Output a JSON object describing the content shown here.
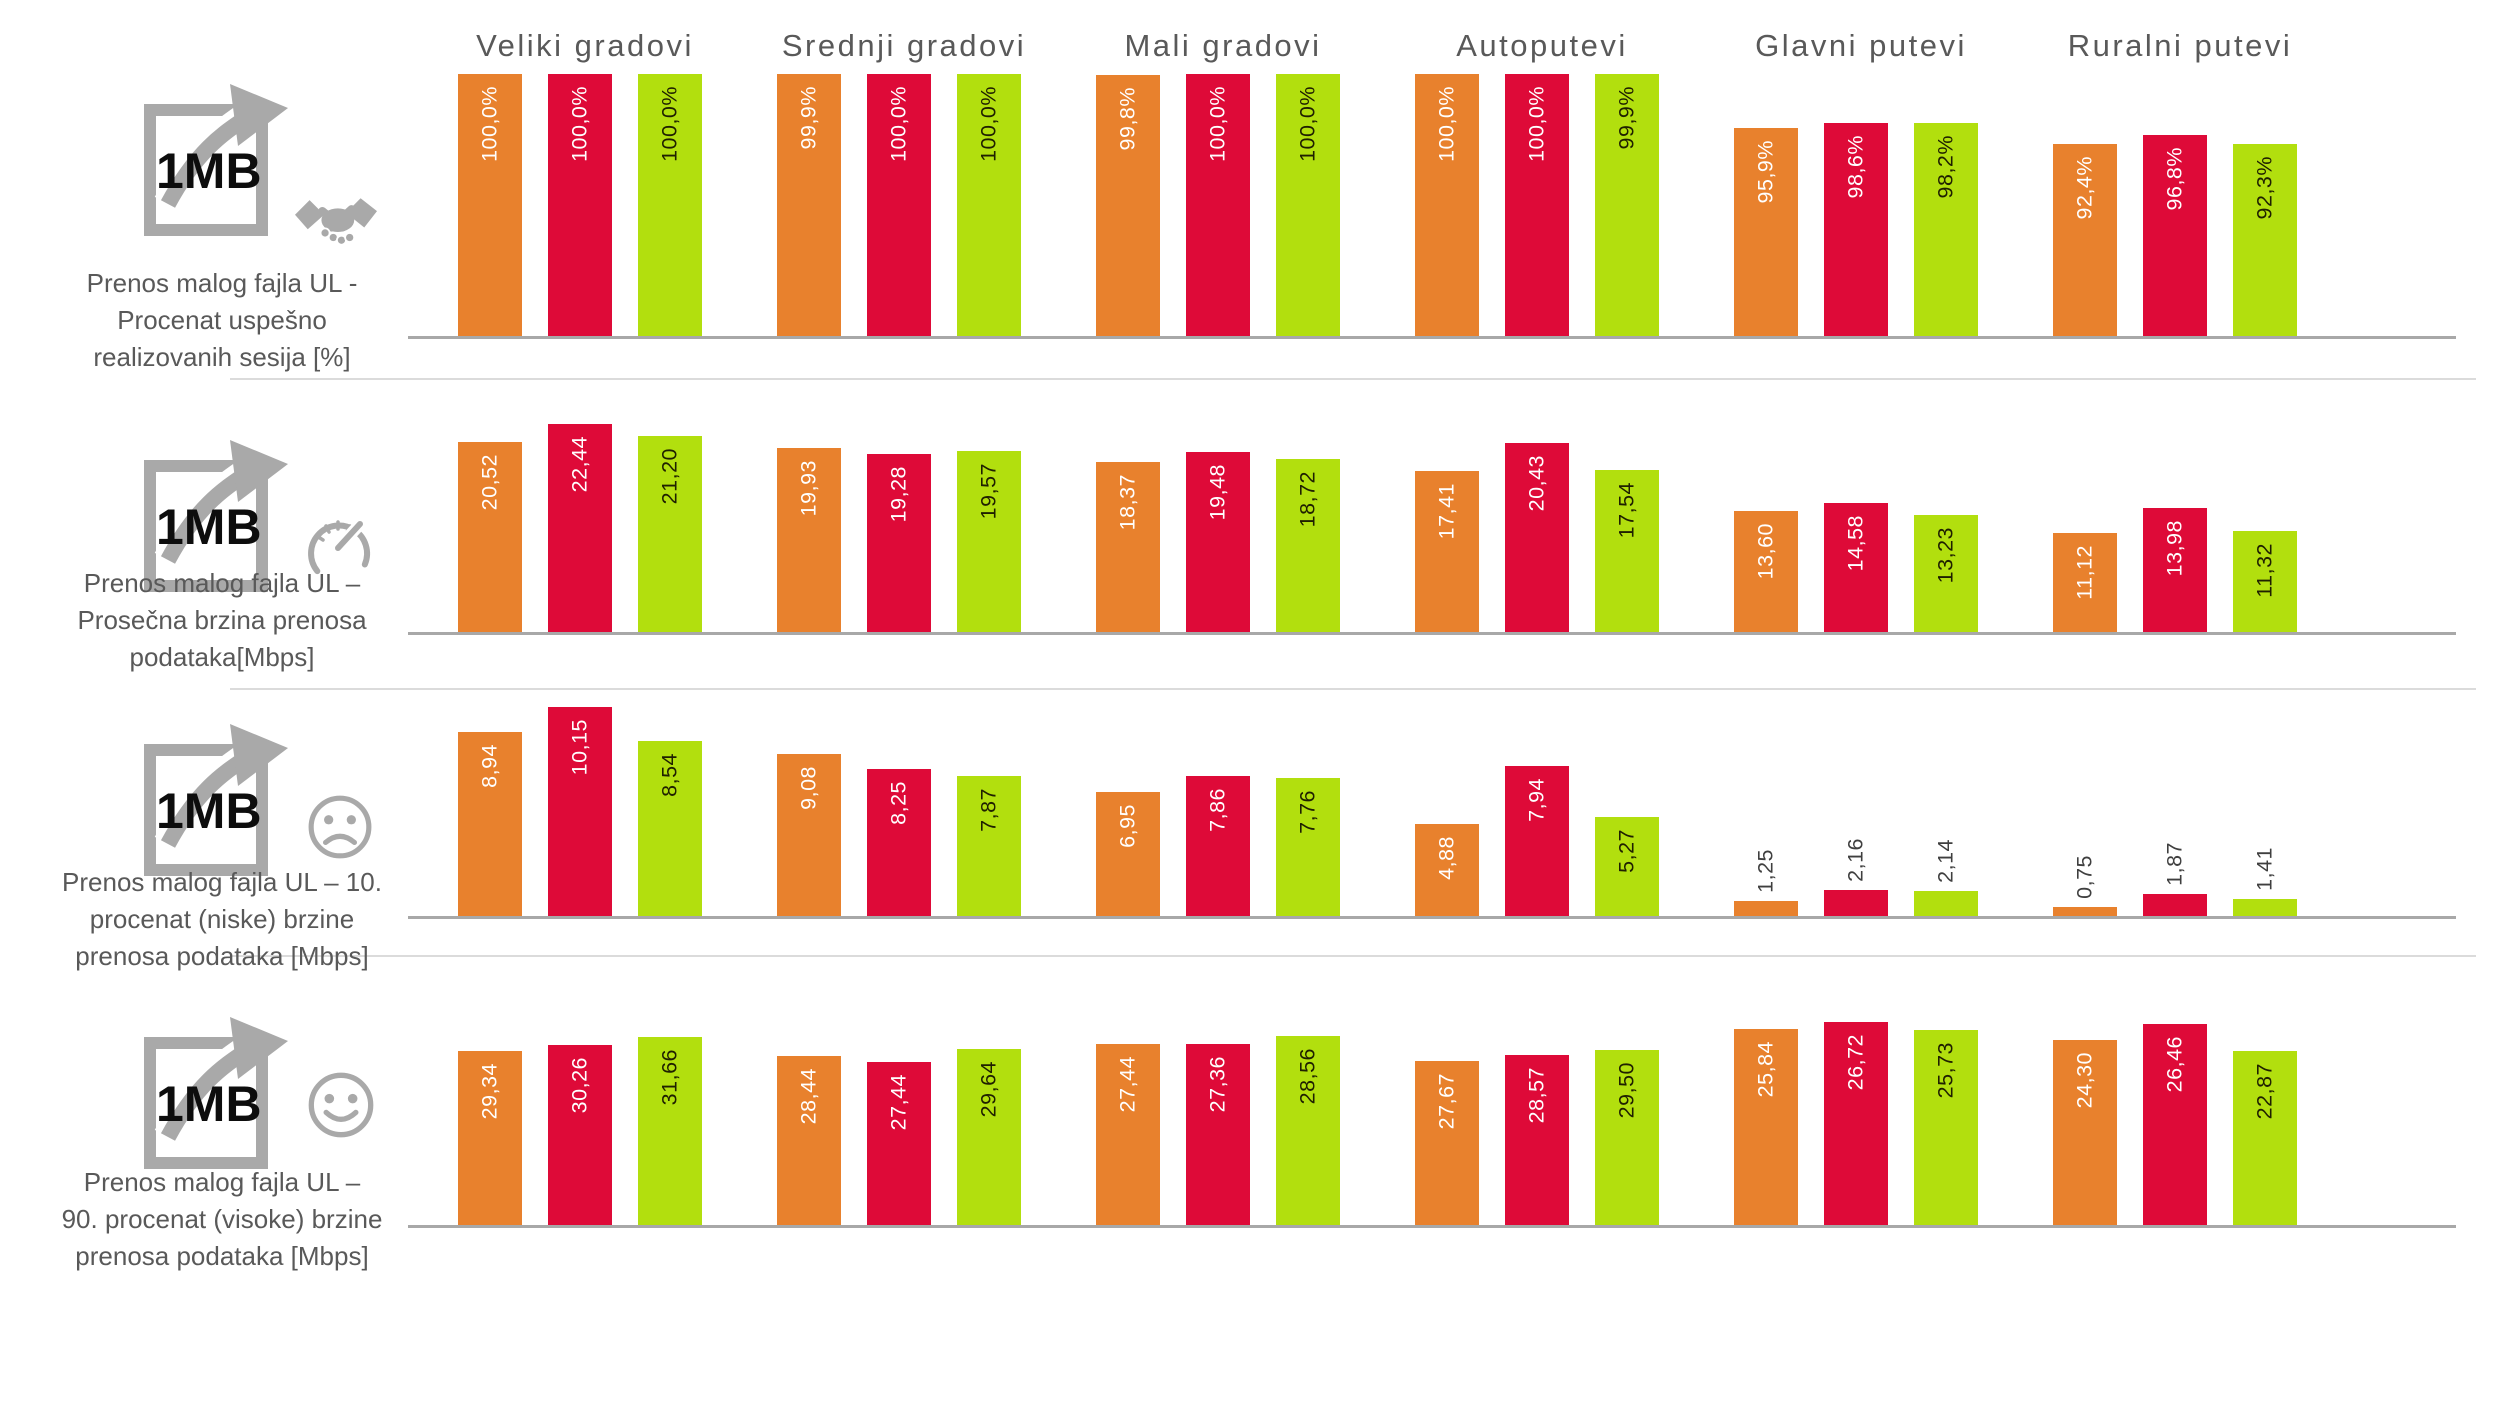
{
  "page": {
    "background": "#FFFFFF"
  },
  "colors": {
    "orange": "#E8812D",
    "red": "#DE0A38",
    "green": "#B2DF0E",
    "icon_gray": "#A9A9A9",
    "text_gray": "#595959",
    "axis_gray": "#A8A8A8",
    "separator_gray": "#DBDBDB",
    "label_outside_dark": "#3F3F3F",
    "label_on_green": "#1F2000",
    "label_on_warm": "#FFFFFF"
  },
  "columns": [
    "Veliki gradovi",
    "Srednji gradovi",
    "Mali gradovi",
    "Autoputevi",
    "Glavni putevi",
    "Ruralni putevi"
  ],
  "rows": [
    {
      "doc_icon_text": "1MB",
      "side_icon": "handshake-icon",
      "label_lines": [
        "Prenos malog fajla UL -",
        "Procenat uspešno",
        "realizovanih sesija [%]"
      ]
    },
    {
      "doc_icon_text": "1MB",
      "side_icon": "speedometer-icon",
      "label_lines": [
        "Prenos malog fajla  UL –",
        "Prosečna brzina prenosa",
        "podataka[Mbps]"
      ]
    },
    {
      "doc_icon_text": "1MB",
      "side_icon": "sad-face-icon",
      "label_lines": [
        "Prenos malog fajla  UL – 10.",
        "procenat (niske) brzine",
        "prenosa podataka  [Mbps]"
      ]
    },
    {
      "doc_icon_text": "1MB",
      "side_icon": "happy-face-icon",
      "label_lines": [
        "Prenos malog fajla UL  –",
        "90. procenat (visoke) brzine",
        "prenosa podataka [Mbps]"
      ]
    }
  ],
  "chart_data": [
    {
      "type": "bar",
      "title": "Prenos malog fajla UL - Procenat uspešno realizovanih sesija [%]",
      "categories": [
        "Veliki gradovi",
        "Srednji gradovi",
        "Mali gradovi",
        "Autoputevi",
        "Glavni putevi",
        "Ruralni putevi"
      ],
      "unit": "%",
      "value_format": {
        "decimals": 1,
        "suffix": "%",
        "decimal_separator": ","
      },
      "axis": {
        "ymin": 0,
        "group_ymax": [
          100,
          100,
          100,
          100,
          121,
          126
        ],
        "grid": false,
        "legend": "none"
      },
      "series": [
        {
          "name": "orange",
          "color": "#E8812D",
          "values": [
            100.0,
            99.9,
            99.8,
            100.0,
            95.9,
            92.4
          ],
          "labels": [
            "100,0%",
            "99,9%",
            "99,8%",
            "100,0%",
            "95,9%",
            "92,4%"
          ]
        },
        {
          "name": "red",
          "color": "#DE0A38",
          "values": [
            100.0,
            100.0,
            100.0,
            100.0,
            98.6,
            96.8
          ],
          "labels": [
            "100,0%",
            "100,0%",
            "100,0%",
            "100,0%",
            "98,6%",
            "96,8%"
          ]
        },
        {
          "name": "green",
          "color": "#B2DF0E",
          "values": [
            100.0,
            100.0,
            100.0,
            99.9,
            98.2,
            92.3
          ],
          "labels": [
            "100,0%",
            "100,0%",
            "100,0%",
            "99,9%",
            "98,2%",
            "92,3%"
          ]
        }
      ]
    },
    {
      "type": "bar",
      "title": "Prenos malog fajla UL – Prosečna brzina prenosa podataka [Mbps]",
      "categories": [
        "Veliki gradovi",
        "Srednji gradovi",
        "Mali gradovi",
        "Autoputevi",
        "Glavni putevi",
        "Ruralni putevi"
      ],
      "unit": "Mbps",
      "value_format": {
        "decimals": 2,
        "suffix": "",
        "decimal_separator": ","
      },
      "axis": {
        "ymin": 0,
        "group_ymax": [
          24,
          24,
          24,
          24,
          25,
          25
        ],
        "grid": false,
        "legend": "none"
      },
      "series": [
        {
          "name": "orange",
          "color": "#E8812D",
          "values": [
            20.52,
            19.93,
            18.37,
            17.41,
            13.6,
            11.12
          ],
          "labels": [
            "20,52",
            "19,93",
            "18,37",
            "17,41",
            "13,60",
            "11,12"
          ]
        },
        {
          "name": "red",
          "color": "#DE0A38",
          "values": [
            22.44,
            19.28,
            19.48,
            20.43,
            14.58,
            13.98
          ],
          "labels": [
            "22,44",
            "19,28",
            "19,48",
            "20,43",
            "14,58",
            "13,98"
          ]
        },
        {
          "name": "green",
          "color": "#B2DF0E",
          "values": [
            21.2,
            19.57,
            18.72,
            17.54,
            13.23,
            11.32
          ],
          "labels": [
            "21,20",
            "19,57",
            "18,72",
            "17,54",
            "13,23",
            "11,32"
          ]
        }
      ]
    },
    {
      "type": "bar",
      "title": "Prenos malog fajla UL – 10. procenat (niske) brzine prenosa podataka [Mbps]",
      "categories": [
        "Veliki gradovi",
        "Srednji gradovi",
        "Mali gradovi",
        "Autoputevi",
        "Glavni putevi",
        "Ruralni putevi"
      ],
      "unit": "Mbps",
      "value_format": {
        "decimals": 2,
        "suffix": "",
        "decimal_separator": ","
      },
      "axis": {
        "ymin": 0,
        "group_ymax": [
          11,
          12.7,
          12.7,
          12,
          19,
          19
        ],
        "grid": false,
        "legend": "none"
      },
      "series": [
        {
          "name": "orange",
          "color": "#E8812D",
          "values": [
            8.94,
            9.08,
            6.95,
            4.88,
            1.25,
            0.75
          ],
          "labels": [
            "8,94",
            "9,08",
            "6,95",
            "4,88",
            "1,25",
            "0,75"
          ]
        },
        {
          "name": "red",
          "color": "#DE0A38",
          "values": [
            10.15,
            8.25,
            7.86,
            7.94,
            2.16,
            1.87
          ],
          "labels": [
            "10,15",
            "8,25",
            "7,86",
            "7,94",
            "2,16",
            "1,87"
          ]
        },
        {
          "name": "green",
          "color": "#B2DF0E",
          "values": [
            8.54,
            7.87,
            7.76,
            5.27,
            2.14,
            1.41
          ],
          "labels": [
            "8,54",
            "7,87",
            "7,76",
            "5,27",
            "2,14",
            "1,41"
          ]
        }
      ]
    },
    {
      "type": "bar",
      "title": "Prenos malog fajla UL – 90. procenat (visoke) brzine prenosa podataka [Mbps]",
      "categories": [
        "Veliki gradovi",
        "Srednji gradovi",
        "Mali gradovi",
        "Autoputevi",
        "Glavni putevi",
        "Ruralni putevi"
      ],
      "unit": "Mbps",
      "value_format": {
        "decimals": 2,
        "suffix": "",
        "decimal_separator": ","
      },
      "axis": {
        "ymin": 0,
        "group_ymax": [
          34.5,
          34.5,
          31,
          34.5,
          27,
          27
        ],
        "grid": false,
        "legend": "none"
      },
      "series": [
        {
          "name": "orange",
          "color": "#E8812D",
          "values": [
            29.34,
            28.44,
            27.44,
            27.67,
            25.84,
            24.3
          ],
          "labels": [
            "29,34",
            "28,44",
            "27,44",
            "27,67",
            "25,84",
            "24,30"
          ]
        },
        {
          "name": "red",
          "color": "#DE0A38",
          "values": [
            30.26,
            27.44,
            27.36,
            28.57,
            26.72,
            26.46
          ],
          "labels": [
            "30,26",
            "27,44",
            "27,36",
            "28,57",
            "26,72",
            "26,46"
          ]
        },
        {
          "name": "green",
          "color": "#B2DF0E",
          "values": [
            31.66,
            29.64,
            28.56,
            29.5,
            25.73,
            22.87
          ],
          "labels": [
            "31,66",
            "29,64",
            "28,56",
            "29,50",
            "25,73",
            "22,87"
          ]
        }
      ]
    }
  ]
}
